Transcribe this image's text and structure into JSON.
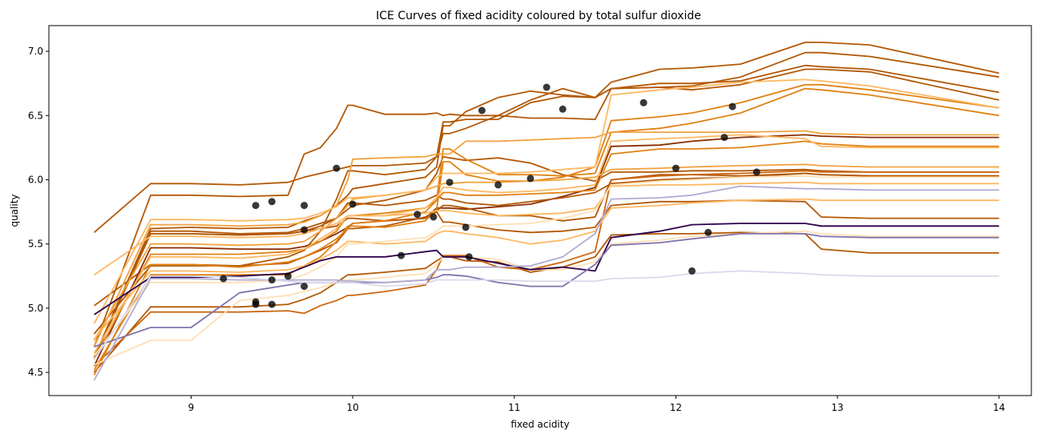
{
  "chart_data": {
    "type": "line",
    "title": "ICE Curves of fixed acidity coloured by total sulfur dioxide",
    "xlabel": "fixed acidity",
    "ylabel": "quality",
    "xlim": [
      8.12,
      14.2
    ],
    "ylim": [
      4.32,
      7.2
    ],
    "xticks": [
      9,
      10,
      11,
      12,
      13,
      14
    ],
    "yticks": [
      4.5,
      5.0,
      5.5,
      6.0,
      6.5,
      7.0
    ],
    "x": [
      8.4,
      8.75,
      9.0,
      9.3,
      9.6,
      9.7,
      9.8,
      9.9,
      9.97,
      10.0,
      10.2,
      10.45,
      10.52,
      10.56,
      10.6,
      10.7,
      10.9,
      11.1,
      11.3,
      11.5,
      11.6,
      11.9,
      12.1,
      12.4,
      12.8,
      12.9,
      13.2,
      14.0
    ],
    "series": [
      {
        "color": "#b35806",
        "values": [
          5.59,
          5.97,
          5.97,
          5.96,
          5.98,
          6.02,
          6.05,
          6.08,
          6.1,
          6.11,
          6.11,
          6.13,
          6.18,
          6.45,
          6.45,
          6.47,
          6.47,
          6.6,
          6.65,
          6.64,
          6.71,
          6.75,
          6.75,
          6.77,
          6.89,
          6.88,
          6.86,
          6.68
        ]
      },
      {
        "color": "#b35806",
        "values": [
          4.7,
          5.88,
          5.88,
          5.87,
          5.88,
          6.2,
          6.25,
          6.4,
          6.58,
          6.58,
          6.51,
          6.51,
          6.52,
          6.5,
          6.51,
          6.5,
          6.5,
          6.48,
          6.48,
          6.47,
          6.71,
          6.72,
          6.7,
          6.74,
          6.86,
          6.86,
          6.84,
          6.62
        ]
      },
      {
        "color": "#b35806",
        "values": [
          4.62,
          5.62,
          5.63,
          5.62,
          5.63,
          5.68,
          5.72,
          5.8,
          5.88,
          5.93,
          5.97,
          6.02,
          6.1,
          6.42,
          6.42,
          6.53,
          6.64,
          6.69,
          6.66,
          6.64,
          6.76,
          6.86,
          6.87,
          6.9,
          7.07,
          7.07,
          7.05,
          6.83
        ]
      },
      {
        "color": "#b35806",
        "values": [
          5.02,
          5.34,
          5.34,
          5.33,
          5.4,
          5.45,
          5.6,
          5.85,
          6.07,
          6.07,
          6.04,
          6.08,
          6.18,
          6.36,
          6.36,
          6.4,
          6.5,
          6.62,
          6.71,
          6.64,
          6.71,
          6.72,
          6.73,
          6.8,
          6.99,
          6.99,
          6.96,
          6.8
        ]
      },
      {
        "color": "#b35806",
        "values": [
          4.6,
          5.6,
          5.6,
          5.58,
          5.59,
          5.62,
          5.66,
          5.7,
          5.77,
          5.8,
          5.84,
          5.92,
          6.05,
          6.18,
          6.17,
          6.15,
          6.17,
          6.13,
          6.04,
          5.99,
          6.06,
          6.06,
          6.07,
          6.07,
          6.08,
          6.07,
          6.06,
          6.06
        ]
      },
      {
        "color": "#8c2d04",
        "values": [
          4.55,
          5.47,
          5.47,
          5.46,
          5.46,
          5.48,
          5.52,
          5.58,
          5.63,
          5.66,
          5.68,
          5.7,
          5.78,
          5.78,
          5.78,
          5.77,
          5.79,
          5.81,
          5.87,
          5.94,
          6.26,
          6.27,
          6.3,
          6.33,
          6.35,
          6.34,
          6.33,
          6.33
        ]
      },
      {
        "color": "#b35806",
        "values": [
          4.8,
          5.33,
          5.33,
          5.33,
          5.35,
          5.4,
          5.45,
          5.51,
          5.62,
          5.62,
          5.64,
          5.71,
          5.76,
          5.8,
          5.8,
          5.78,
          5.72,
          5.72,
          5.68,
          5.71,
          6.0,
          6.04,
          6.04,
          6.03,
          6.05,
          6.04,
          6.03,
          6.03
        ]
      },
      {
        "color": "#b35806",
        "values": [
          4.62,
          5.58,
          5.58,
          5.57,
          5.58,
          5.6,
          5.64,
          5.7,
          5.82,
          5.82,
          5.8,
          5.84,
          5.88,
          5.85,
          5.85,
          5.82,
          5.8,
          5.83,
          5.86,
          5.9,
          5.97,
          6.0,
          6.01,
          6.02,
          6.05,
          6.04,
          6.03,
          6.03
        ]
      },
      {
        "color": "#b35806",
        "values": [
          4.62,
          5.58,
          5.58,
          5.57,
          5.58,
          5.6,
          5.62,
          5.64,
          5.7,
          5.7,
          5.68,
          5.7,
          5.75,
          5.67,
          5.67,
          5.65,
          5.61,
          5.59,
          5.6,
          5.63,
          5.8,
          5.83,
          5.83,
          5.84,
          5.83,
          5.71,
          5.7,
          5.7
        ]
      },
      {
        "color": "#b35806",
        "values": [
          4.5,
          5.01,
          5.01,
          5.01,
          5.03,
          5.07,
          5.12,
          5.2,
          5.26,
          5.26,
          5.28,
          5.31,
          5.37,
          5.4,
          5.4,
          5.37,
          5.36,
          5.28,
          5.32,
          5.4,
          5.57,
          5.58,
          5.58,
          5.59,
          5.58,
          5.46,
          5.43,
          5.43
        ]
      },
      {
        "color": "#cc6610",
        "values": [
          4.55,
          4.97,
          4.97,
          4.97,
          4.98,
          4.96,
          5.02,
          5.06,
          5.1,
          5.1,
          5.13,
          5.18,
          5.3,
          5.41,
          5.41,
          5.41,
          5.32,
          5.3,
          5.36,
          5.44,
          6.0,
          6.03,
          6.04,
          6.05,
          6.07,
          6.06,
          6.06,
          6.06
        ]
      },
      {
        "color": "#e08214",
        "values": [
          4.48,
          5.34,
          5.34,
          5.32,
          5.36,
          5.4,
          5.46,
          5.54,
          5.62,
          5.66,
          5.68,
          5.75,
          5.84,
          6.24,
          6.24,
          6.16,
          6.04,
          6.04,
          6.03,
          6.05,
          6.37,
          6.4,
          6.44,
          6.52,
          6.71,
          6.7,
          6.66,
          6.5
        ]
      },
      {
        "color": "#e08214",
        "values": [
          4.52,
          5.26,
          5.26,
          5.26,
          5.26,
          5.33,
          5.4,
          5.52,
          5.64,
          5.64,
          5.63,
          5.68,
          5.77,
          6.14,
          6.14,
          6.04,
          5.99,
          5.99,
          6.02,
          6.1,
          6.46,
          6.49,
          6.52,
          6.6,
          6.74,
          6.74,
          6.7,
          6.56
        ]
      },
      {
        "color": "#e08214",
        "values": [
          4.6,
          5.42,
          5.42,
          5.42,
          5.44,
          5.46,
          5.52,
          5.6,
          5.72,
          5.72,
          5.74,
          5.78,
          5.84,
          5.9,
          5.9,
          5.88,
          5.88,
          5.89,
          5.9,
          5.92,
          6.2,
          6.24,
          6.24,
          6.25,
          6.3,
          6.28,
          6.26,
          6.26
        ]
      },
      {
        "color": "#f1a340",
        "values": [
          4.7,
          5.65,
          5.65,
          5.64,
          5.65,
          5.67,
          5.72,
          5.8,
          6.0,
          6.16,
          6.17,
          6.18,
          6.2,
          6.2,
          6.2,
          6.3,
          6.3,
          6.31,
          6.32,
          6.33,
          6.37,
          6.37,
          6.37,
          6.37,
          6.38,
          6.36,
          6.35,
          6.35
        ]
      },
      {
        "color": "#f1a340",
        "values": [
          4.75,
          5.5,
          5.5,
          5.49,
          5.5,
          5.52,
          5.6,
          5.7,
          5.8,
          5.85,
          5.88,
          5.92,
          5.95,
          5.97,
          5.97,
          5.98,
          5.98,
          5.99,
          6.0,
          6.02,
          6.08,
          6.09,
          6.1,
          6.11,
          6.12,
          6.11,
          6.1,
          6.1
        ]
      },
      {
        "color": "#fdb863",
        "values": [
          4.65,
          5.4,
          5.4,
          5.39,
          5.42,
          5.46,
          5.54,
          5.62,
          5.72,
          5.72,
          5.72,
          5.78,
          5.86,
          5.94,
          5.94,
          5.92,
          5.9,
          5.91,
          5.93,
          5.96,
          6.3,
          6.32,
          6.33,
          6.35,
          6.32,
          6.26,
          6.25,
          6.25
        ]
      },
      {
        "color": "#fdb863",
        "values": [
          4.88,
          5.69,
          5.69,
          5.68,
          5.69,
          5.7,
          5.74,
          5.79,
          5.86,
          5.86,
          5.88,
          5.92,
          6.02,
          6.05,
          6.05,
          6.05,
          6.05,
          6.06,
          6.08,
          6.1,
          6.66,
          6.7,
          6.72,
          6.76,
          6.78,
          6.77,
          6.73,
          6.56
        ]
      },
      {
        "color": "#fdb863",
        "values": [
          5.26,
          5.56,
          5.56,
          5.55,
          5.56,
          5.58,
          5.62,
          5.66,
          5.72,
          5.72,
          5.72,
          5.74,
          5.76,
          5.76,
          5.76,
          5.74,
          5.72,
          5.73,
          5.74,
          5.78,
          5.95,
          5.96,
          5.96,
          5.97,
          5.98,
          5.97,
          5.97,
          5.97
        ]
      },
      {
        "color": "#fdb863",
        "values": [
          4.76,
          5.29,
          5.29,
          5.28,
          5.3,
          5.33,
          5.38,
          5.45,
          5.52,
          5.52,
          5.5,
          5.52,
          5.58,
          5.6,
          5.6,
          5.58,
          5.55,
          5.5,
          5.53,
          5.6,
          5.78,
          5.8,
          5.82,
          5.84,
          5.85,
          5.84,
          5.84,
          5.84
        ]
      },
      {
        "color": "#fee0b6",
        "values": [
          4.56,
          4.75,
          4.75,
          5.06,
          5.1,
          5.13,
          5.16,
          5.2,
          5.22,
          5.22,
          5.24,
          5.27,
          5.34,
          5.4,
          5.4,
          5.4,
          5.38,
          5.3,
          5.3,
          5.36,
          5.5,
          5.53,
          5.56,
          5.58,
          5.6,
          5.58,
          5.56,
          5.56
        ]
      },
      {
        "color": "#fee0b6",
        "values": [
          4.63,
          5.2,
          5.2,
          5.2,
          5.22,
          5.26,
          5.32,
          5.4,
          5.5,
          5.5,
          5.52,
          5.55,
          5.6,
          5.64,
          5.64,
          5.64,
          5.65,
          5.66,
          5.7,
          5.76,
          5.96,
          5.99,
          6.0,
          6.02,
          6.03,
          6.02,
          6.02,
          6.02
        ]
      },
      {
        "color": "#2d004b",
        "values": [
          4.95,
          5.24,
          5.24,
          5.25,
          5.27,
          5.32,
          5.37,
          5.4,
          5.4,
          5.4,
          5.4,
          5.44,
          5.45,
          5.4,
          5.4,
          5.4,
          5.35,
          5.3,
          5.32,
          5.29,
          5.55,
          5.6,
          5.65,
          5.66,
          5.66,
          5.64,
          5.64,
          5.64
        ]
      },
      {
        "color": "#8073ac",
        "values": [
          4.7,
          4.85,
          4.85,
          5.12,
          5.18,
          5.2,
          5.2,
          5.2,
          5.2,
          5.2,
          5.2,
          5.22,
          5.24,
          5.26,
          5.26,
          5.25,
          5.2,
          5.17,
          5.17,
          5.34,
          5.49,
          5.51,
          5.54,
          5.58,
          5.58,
          5.56,
          5.55,
          5.55
        ]
      },
      {
        "color": "#b2abd2",
        "values": [
          4.44,
          5.23,
          5.23,
          5.22,
          5.22,
          5.22,
          5.22,
          5.22,
          5.21,
          5.21,
          5.2,
          5.22,
          5.3,
          5.3,
          5.3,
          5.32,
          5.32,
          5.33,
          5.4,
          5.58,
          5.85,
          5.86,
          5.88,
          5.95,
          5.93,
          5.93,
          5.92,
          5.92
        ]
      },
      {
        "color": "#d8daeb",
        "values": [
          4.6,
          5.25,
          5.25,
          5.24,
          5.21,
          5.2,
          5.2,
          5.2,
          5.2,
          5.2,
          5.17,
          5.19,
          5.22,
          5.22,
          5.22,
          5.22,
          5.22,
          5.21,
          5.21,
          5.21,
          5.23,
          5.24,
          5.27,
          5.29,
          5.27,
          5.26,
          5.25,
          5.25
        ]
      }
    ],
    "points": [
      {
        "x": 9.2,
        "y": 5.23
      },
      {
        "x": 9.4,
        "y": 5.8
      },
      {
        "x": 9.4,
        "y": 5.05
      },
      {
        "x": 9.4,
        "y": 5.03
      },
      {
        "x": 9.5,
        "y": 5.83
      },
      {
        "x": 9.5,
        "y": 5.22
      },
      {
        "x": 9.5,
        "y": 5.03
      },
      {
        "x": 9.6,
        "y": 5.25
      },
      {
        "x": 9.7,
        "y": 5.8
      },
      {
        "x": 9.7,
        "y": 5.61
      },
      {
        "x": 9.7,
        "y": 5.17
      },
      {
        "x": 9.9,
        "y": 6.09
      },
      {
        "x": 10.0,
        "y": 5.81
      },
      {
        "x": 10.3,
        "y": 5.41
      },
      {
        "x": 10.4,
        "y": 5.73
      },
      {
        "x": 10.5,
        "y": 5.71
      },
      {
        "x": 10.6,
        "y": 5.98
      },
      {
        "x": 10.7,
        "y": 5.63
      },
      {
        "x": 10.72,
        "y": 5.4
      },
      {
        "x": 10.8,
        "y": 6.54
      },
      {
        "x": 10.9,
        "y": 5.96
      },
      {
        "x": 11.1,
        "y": 6.01
      },
      {
        "x": 11.2,
        "y": 6.72
      },
      {
        "x": 11.3,
        "y": 6.55
      },
      {
        "x": 11.8,
        "y": 6.6
      },
      {
        "x": 12.0,
        "y": 6.09
      },
      {
        "x": 12.1,
        "y": 5.29
      },
      {
        "x": 12.2,
        "y": 5.59
      },
      {
        "x": 12.3,
        "y": 6.33
      },
      {
        "x": 12.35,
        "y": 6.57
      },
      {
        "x": 12.5,
        "y": 6.06
      }
    ],
    "grid": false,
    "legend": false
  }
}
